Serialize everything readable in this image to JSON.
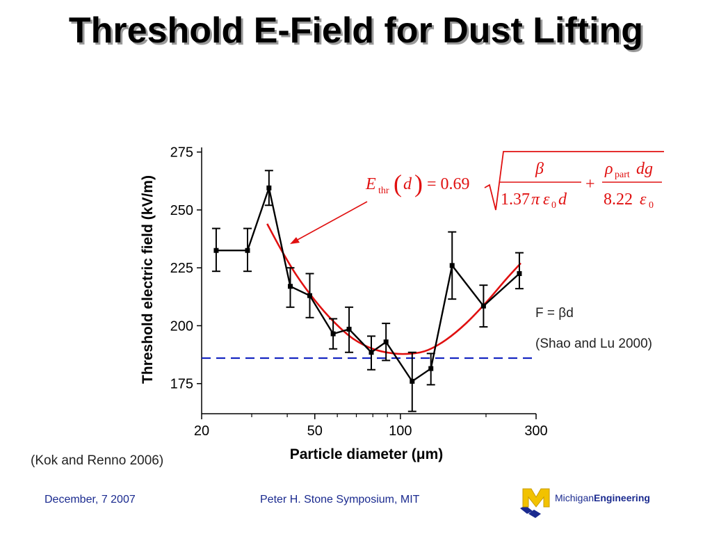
{
  "slide": {
    "title": "Threshold E-Field for Dust Lifting",
    "note_force": "F = βd",
    "note_shao": "(Shao and Lu 2000)",
    "note_kok": "(Kok and Renno 2006)",
    "footer_date": "December, 7 2007",
    "footer_event": "Peter H. Stone Symposium, MIT",
    "logo_text_1": "Michigan",
    "logo_text_2": "Engineering",
    "colors": {
      "title_shadow": "#9a9a9a",
      "footer_text": "#1a2a8f",
      "data_series": "#000000",
      "fit_curve": "#e01010",
      "reference_line": "#1020c0",
      "annotation": "#e01010",
      "logo_yellow": "#f2c200"
    }
  },
  "chart_data": {
    "type": "line",
    "xlabel": "Particle diameter (μm)",
    "ylabel": "Threshold electric field (kV/m)",
    "x_scale": "log",
    "xlim": [
      20,
      300
    ],
    "ylim": [
      162,
      277
    ],
    "x_ticks": [
      20,
      50,
      100,
      300
    ],
    "x_tick_labels": [
      "20",
      "50",
      "100",
      "300"
    ],
    "x_minor_ticks": [
      30,
      40,
      60,
      70,
      80,
      90,
      200
    ],
    "y_ticks": [
      175,
      200,
      225,
      250,
      275
    ],
    "y_tick_labels": [
      "175",
      "200",
      "225",
      "250",
      "275"
    ],
    "grid": false,
    "series": [
      {
        "kind": "data",
        "marker": "square",
        "x": [
          22.5,
          29,
          34.5,
          41,
          48,
          58,
          66,
          79,
          89,
          110,
          128,
          152,
          196,
          262
        ],
        "y": [
          232.5,
          232.5,
          259.5,
          217,
          213,
          196.5,
          198.5,
          188.5,
          193,
          176,
          181.5,
          226,
          208.5,
          222.5
        ],
        "err_low": [
          9,
          9,
          7.5,
          9,
          9.5,
          6.5,
          10,
          7.5,
          8,
          13,
          7,
          14.5,
          9,
          6.5
        ],
        "err_high": [
          9.5,
          9.5,
          7.5,
          8,
          9.5,
          6.5,
          9.5,
          7,
          8,
          12.5,
          6.5,
          14.5,
          9,
          9
        ]
      },
      {
        "kind": "fit",
        "x": [
          34,
          38,
          43,
          50,
          58,
          68,
          80,
          95,
          110,
          125,
          145,
          170,
          200,
          235,
          265
        ],
        "y": [
          244,
          233,
          222,
          211,
          202,
          194.5,
          190,
          188,
          188,
          189.5,
          194,
          201,
          210,
          220,
          227
        ]
      },
      {
        "kind": "reference",
        "y": 186,
        "x_range": [
          20,
          300
        ]
      }
    ],
    "annotation": {
      "equation": {
        "lhs_symbol": "E",
        "lhs_sub": "thr",
        "lhs_arg": "d",
        "coef": "= 0.69",
        "term1_num": "β",
        "term1_den_coef": "1.37",
        "term1_den_pi": "π",
        "term1_den_eps": "ε",
        "term1_den_eps_sub": "0",
        "term1_den_d": "d",
        "plus": "+",
        "term2_num_rho": "ρ",
        "term2_num_sub": "part",
        "term2_num_rest": "dg",
        "term2_den_coef": "8.22",
        "term2_den_eps": "ε",
        "term2_den_eps_sub": "0"
      }
    }
  }
}
